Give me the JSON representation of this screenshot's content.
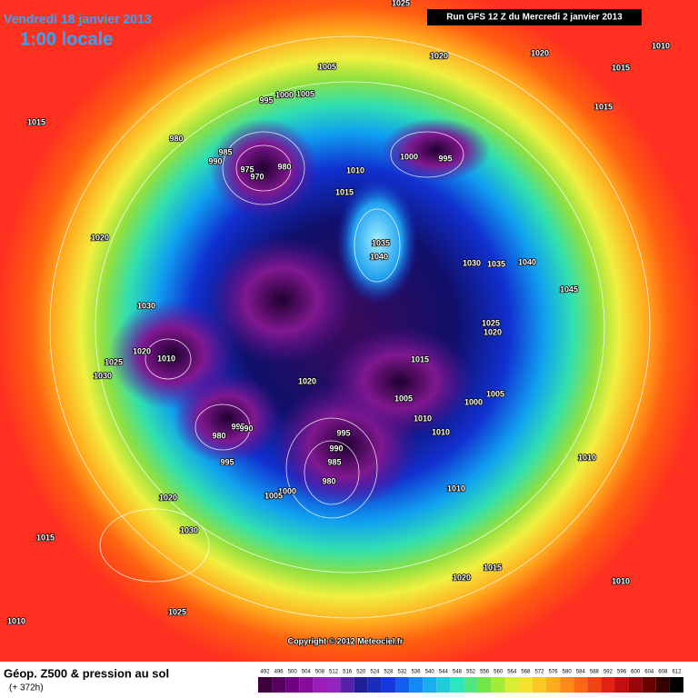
{
  "header": {
    "date": "Vendredi 18 janvier 2013",
    "time": "1:00 locale",
    "run": "Run GFS 12 Z du Mercredi 2 janvier 2013"
  },
  "map": {
    "pressure_labels": [
      1025,
      1020,
      1020,
      1010,
      1015,
      1005,
      1015,
      995,
      1000,
      1005,
      980,
      985,
      990,
      975,
      970,
      980,
      1010,
      1000,
      995,
      1015,
      1015,
      1020,
      1035,
      1040,
      1030,
      1035,
      1040,
      1045,
      1030,
      1025,
      1020,
      1020,
      1010,
      1025,
      1030,
      1015,
      1020,
      1005,
      1000,
      1005,
      1010,
      1010,
      995,
      990,
      985,
      980,
      995,
      990,
      980,
      995,
      1000,
      1005,
      1010,
      1010,
      1020,
      1030,
      1015,
      1020,
      1015,
      1010,
      1025,
      1010
    ],
    "copyright": "Copyright © 2012 Meteociel.fr"
  },
  "footer": {
    "title": "Géop. Z500 & pression au sol",
    "lead": "(+ 372h)"
  },
  "scale": {
    "labels": [
      492,
      496,
      500,
      504,
      508,
      512,
      516,
      520,
      524,
      528,
      532,
      536,
      540,
      544,
      548,
      552,
      556,
      560,
      564,
      568,
      572,
      576,
      580,
      584,
      588,
      592,
      596,
      600,
      604,
      608,
      612
    ]
  }
}
